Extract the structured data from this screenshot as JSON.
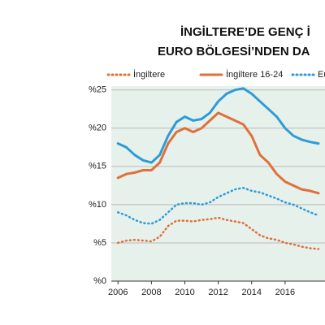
{
  "chart_data": {
    "type": "line",
    "title": [
      "İNGİLTERE’DE GENÇ İ",
      "EURO BÖLGESİ’NDEN DA"
    ],
    "x": [
      2006,
      2006.5,
      2007,
      2007.5,
      2008,
      2008.5,
      2009,
      2009.5,
      2010,
      2010.5,
      2011,
      2011.5,
      2012,
      2012.5,
      2013,
      2013.5,
      2014,
      2014.5,
      2015,
      2015.5,
      2016,
      2016.5,
      2017,
      2017.5,
      2018
    ],
    "series": [
      {
        "name": "İngiltere",
        "color": "#e0703a",
        "style": "dotted",
        "values": [
          5.0,
          5.3,
          5.4,
          5.3,
          5.2,
          5.8,
          7.2,
          7.9,
          7.9,
          7.8,
          8.0,
          8.1,
          8.3,
          8.0,
          7.8,
          7.6,
          6.8,
          6.0,
          5.6,
          5.4,
          5.0,
          4.8,
          4.5,
          4.3,
          4.2
        ]
      },
      {
        "name": "İngiltere 16-24",
        "color": "#e0703a",
        "style": "solid",
        "values": [
          13.5,
          14.0,
          14.2,
          14.5,
          14.5,
          15.5,
          18.0,
          19.5,
          20.0,
          19.5,
          20.0,
          21.0,
          22.0,
          21.5,
          21.0,
          20.5,
          19.0,
          16.5,
          15.5,
          14.0,
          13.0,
          12.5,
          12.0,
          11.8,
          11.5
        ]
      },
      {
        "name": "Euro B",
        "color": "#2e9bd6",
        "style": "dotted",
        "values": [
          9.0,
          8.6,
          8.0,
          7.6,
          7.5,
          8.0,
          9.0,
          10.0,
          10.2,
          10.2,
          10.0,
          10.3,
          11.0,
          11.5,
          12.0,
          12.2,
          11.8,
          11.6,
          11.2,
          10.8,
          10.3,
          10.0,
          9.5,
          9.0,
          8.6
        ]
      },
      {
        "color": "#2e9bd6",
        "style": "solid",
        "values": [
          18.0,
          17.5,
          16.5,
          15.8,
          15.5,
          16.5,
          19.0,
          20.8,
          21.5,
          21.0,
          21.2,
          22.0,
          23.5,
          24.5,
          25.0,
          25.2,
          24.5,
          23.5,
          22.5,
          21.5,
          20.0,
          19.0,
          18.5,
          18.2,
          18.0
        ]
      }
    ],
    "xlim": [
      2005.6,
      2018.0
    ],
    "xticks": [
      2006,
      2008,
      2010,
      2012,
      2014,
      2016
    ],
    "ylim": [
      0,
      25.5
    ],
    "yticks": [
      {
        "value": 0,
        "label": "%0"
      },
      {
        "value": 5,
        "label": "%5"
      },
      {
        "value": 10,
        "label": "%10"
      },
      {
        "value": 15,
        "label": "%15"
      },
      {
        "value": 20,
        "label": "%20"
      },
      {
        "value": 25,
        "label": "%25"
      }
    ],
    "grid": true
  }
}
